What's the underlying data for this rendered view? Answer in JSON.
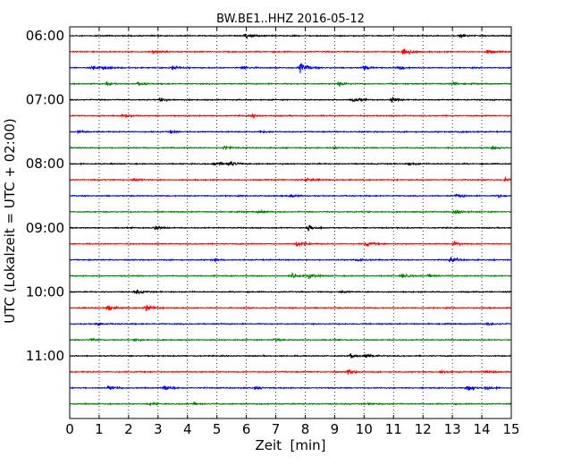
{
  "chart_data": {
    "type": "line",
    "title": "BW.BE1..HHZ 2016-05-12",
    "xlabel": "Zeit  [min]",
    "ylabel": "UTC (Lokalzeit = UTC + 02:00)",
    "xlim": [
      0,
      15
    ],
    "x_ticks": [
      "0",
      "1",
      "2",
      "3",
      "4",
      "5",
      "6",
      "7",
      "8",
      "9",
      "10",
      "11",
      "12",
      "13",
      "14",
      "15"
    ],
    "y_tick_labels": [
      {
        "row": 0,
        "label": "06:00"
      },
      {
        "row": 4,
        "label": "07:00"
      },
      {
        "row": 8,
        "label": "08:00"
      },
      {
        "row": 12,
        "label": "09:00"
      },
      {
        "row": 16,
        "label": "10:00"
      },
      {
        "row": 20,
        "label": "11:00"
      }
    ],
    "row_interval_minutes": 15,
    "row_color_cycle": [
      "#000000",
      "#ff0000",
      "#0000ff",
      "#008000"
    ],
    "vertical_grid": "dotted",
    "traces": [
      {
        "start": "06:00",
        "events": [
          {
            "t": 6.0,
            "amp": 0.45
          },
          {
            "t": 13.3,
            "amp": 0.3
          }
        ]
      },
      {
        "start": "06:15",
        "events": [
          {
            "t": 2.85,
            "amp": 0.4
          },
          {
            "t": 11.35,
            "amp": 0.9
          },
          {
            "t": 14.2,
            "amp": 0.4
          }
        ]
      },
      {
        "start": "06:30",
        "events": [
          {
            "t": 0.8,
            "amp": 0.35
          },
          {
            "t": 1.1,
            "amp": 0.3
          },
          {
            "t": 3.5,
            "amp": 0.35
          },
          {
            "t": 5.9,
            "amp": 0.35
          },
          {
            "t": 7.85,
            "amp": 1.1
          },
          {
            "t": 10.0,
            "amp": 0.35
          },
          {
            "t": 11.2,
            "amp": 0.35
          }
        ]
      },
      {
        "start": "06:45",
        "events": [
          {
            "t": 1.25,
            "amp": 0.25
          },
          {
            "t": 2.35,
            "amp": 0.25
          },
          {
            "t": 9.15,
            "amp": 0.35
          },
          {
            "t": 13.0,
            "amp": 0.25
          }
        ]
      },
      {
        "start": "07:00",
        "events": [
          {
            "t": 3.1,
            "amp": 0.3
          },
          {
            "t": 9.65,
            "amp": 0.45
          },
          {
            "t": 10.95,
            "amp": 0.4
          }
        ]
      },
      {
        "start": "07:15",
        "events": [
          {
            "t": 1.8,
            "amp": 0.35
          },
          {
            "t": 6.2,
            "amp": 0.2
          }
        ]
      },
      {
        "start": "07:30",
        "events": [
          {
            "t": 0.3,
            "amp": 0.25
          },
          {
            "t": 3.45,
            "amp": 0.25
          },
          {
            "t": 6.5,
            "amp": 0.2
          },
          {
            "t": 13.3,
            "amp": 0.2
          }
        ]
      },
      {
        "start": "07:45",
        "events": [
          {
            "t": 5.25,
            "amp": 0.3
          },
          {
            "t": 9.0,
            "amp": 0.2
          },
          {
            "t": 14.4,
            "amp": 0.25
          }
        ]
      },
      {
        "start": "08:00",
        "events": [
          {
            "t": 4.95,
            "amp": 0.55
          },
          {
            "t": 5.45,
            "amp": 0.4
          },
          {
            "t": 11.55,
            "amp": 0.25
          }
        ]
      },
      {
        "start": "08:15",
        "events": [
          {
            "t": 2.2,
            "amp": 0.25
          },
          {
            "t": 8.05,
            "amp": 0.35
          },
          {
            "t": 14.8,
            "amp": 0.3
          }
        ]
      },
      {
        "start": "08:30",
        "events": [
          {
            "t": 7.5,
            "amp": 0.25
          },
          {
            "t": 13.15,
            "amp": 0.3
          },
          {
            "t": 14.55,
            "amp": 0.2
          }
        ]
      },
      {
        "start": "08:45",
        "events": [
          {
            "t": 6.45,
            "amp": 0.25
          },
          {
            "t": 13.1,
            "amp": 0.5
          }
        ]
      },
      {
        "start": "09:00",
        "events": [
          {
            "t": 2.9,
            "amp": 0.4
          },
          {
            "t": 8.1,
            "amp": 0.65
          }
        ]
      },
      {
        "start": "09:15",
        "events": [
          {
            "t": 7.75,
            "amp": 0.6
          },
          {
            "t": 10.1,
            "amp": 0.45
          },
          {
            "t": 13.1,
            "amp": 0.35
          }
        ]
      },
      {
        "start": "09:30",
        "events": [
          {
            "t": 4.9,
            "amp": 0.2
          },
          {
            "t": 9.8,
            "amp": 0.3
          },
          {
            "t": 12.95,
            "amp": 0.45
          }
        ]
      },
      {
        "start": "09:45",
        "events": [
          {
            "t": 7.6,
            "amp": 0.45
          },
          {
            "t": 8.15,
            "amp": 0.4
          },
          {
            "t": 11.3,
            "amp": 0.35
          },
          {
            "t": 12.2,
            "amp": 0.25
          }
        ]
      },
      {
        "start": "10:00",
        "events": [
          {
            "t": 2.25,
            "amp": 0.4
          },
          {
            "t": 9.25,
            "amp": 0.2
          }
        ]
      },
      {
        "start": "10:15",
        "events": [
          {
            "t": 1.3,
            "amp": 0.55
          },
          {
            "t": 2.6,
            "amp": 0.65
          }
        ]
      },
      {
        "start": "10:30",
        "events": [
          {
            "t": 0.95,
            "amp": 0.3
          },
          {
            "t": 14.2,
            "amp": 0.2
          }
        ]
      },
      {
        "start": "10:45",
        "events": [
          {
            "t": 0.75,
            "amp": 0.2
          },
          {
            "t": 2.25,
            "amp": 0.2
          },
          {
            "t": 6.95,
            "amp": 0.25
          }
        ]
      },
      {
        "start": "11:00",
        "events": [
          {
            "t": 9.55,
            "amp": 0.35
          },
          {
            "t": 10.1,
            "amp": 0.35
          }
        ]
      },
      {
        "start": "11:15",
        "events": [
          {
            "t": 9.45,
            "amp": 0.45
          },
          {
            "t": 12.6,
            "amp": 0.3
          },
          {
            "t": 14.15,
            "amp": 0.25
          }
        ]
      },
      {
        "start": "11:30",
        "events": [
          {
            "t": 1.35,
            "amp": 0.35
          },
          {
            "t": 3.25,
            "amp": 0.5
          },
          {
            "t": 6.3,
            "amp": 0.25
          },
          {
            "t": 13.55,
            "amp": 0.5
          },
          {
            "t": 14.15,
            "amp": 0.3
          }
        ]
      },
      {
        "start": "11:45",
        "events": [
          {
            "t": 2.75,
            "amp": 0.2
          },
          {
            "t": 4.2,
            "amp": 0.2
          },
          {
            "t": 10.2,
            "amp": 0.2
          }
        ]
      }
    ]
  }
}
